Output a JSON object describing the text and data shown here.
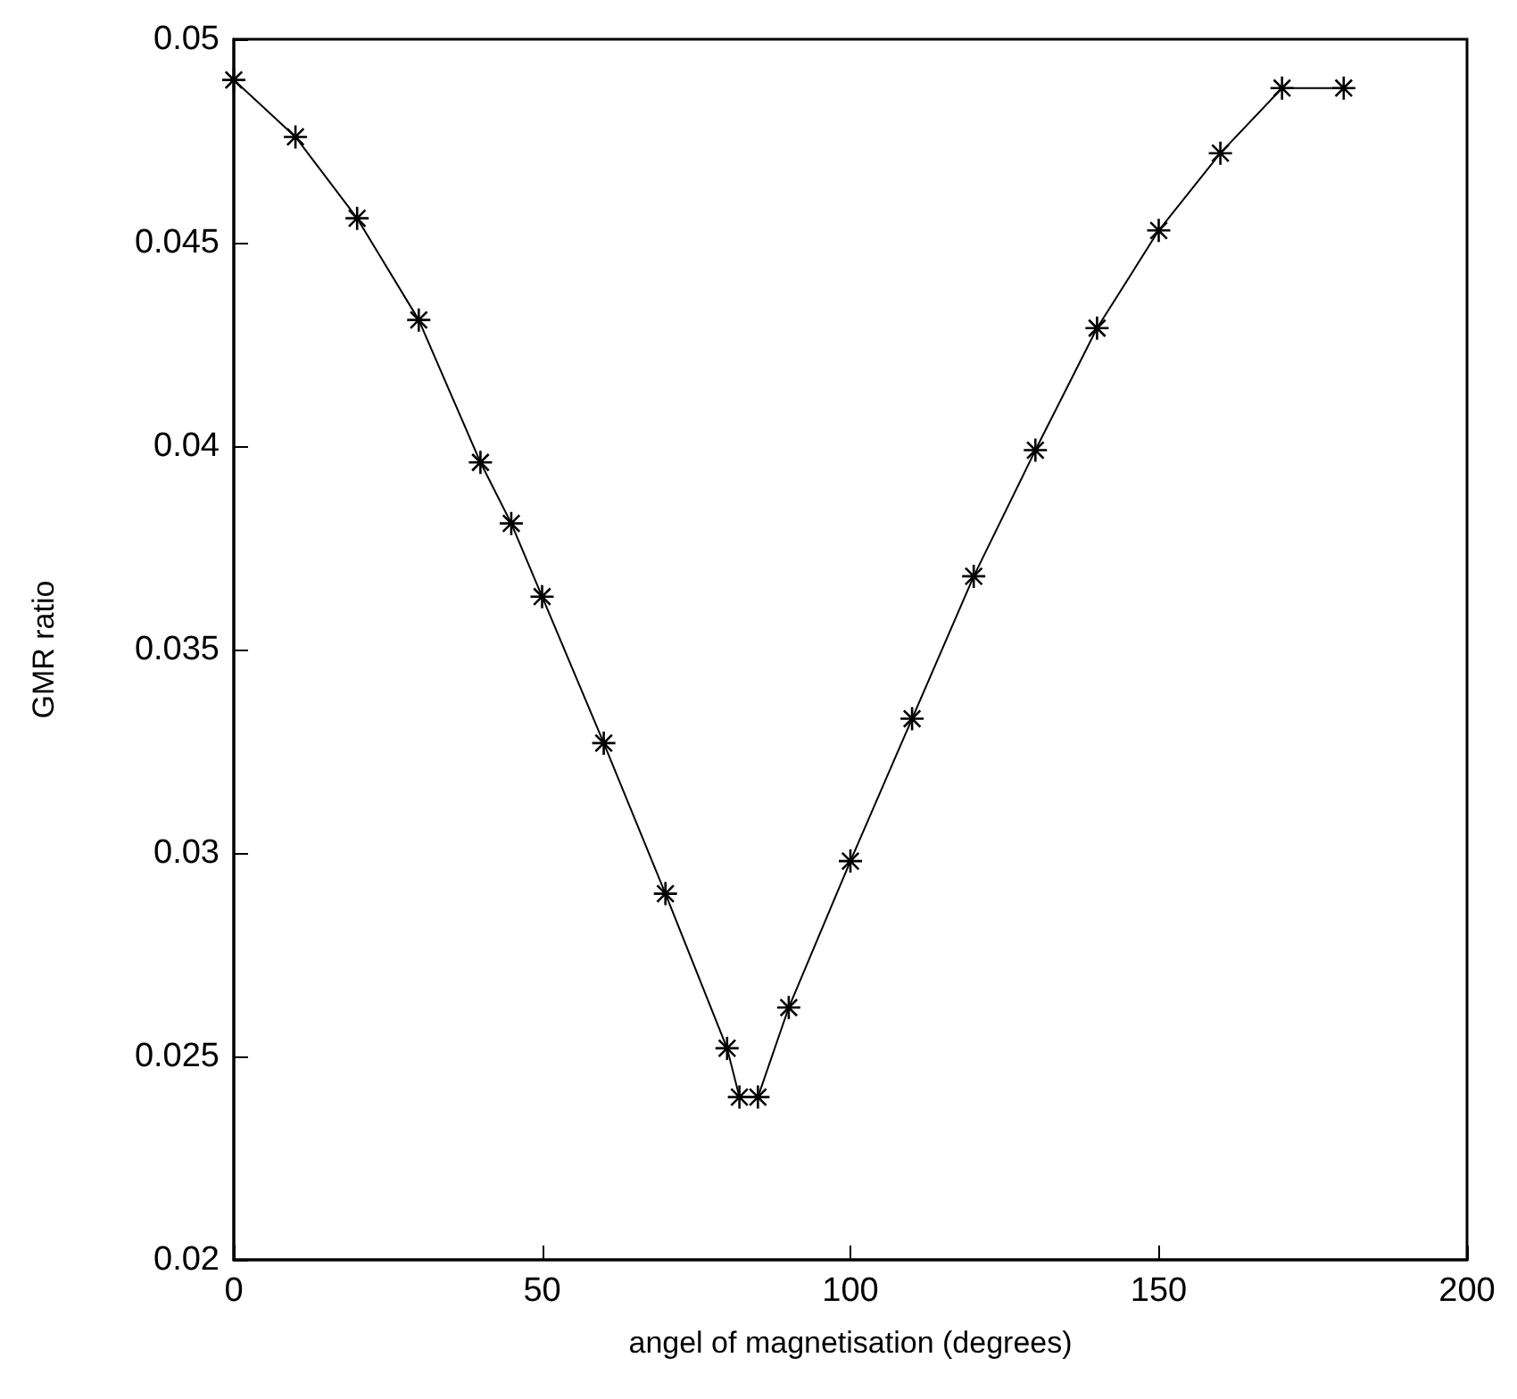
{
  "chart_data": {
    "type": "line",
    "xlabel": "angel of magnetisation (degrees)",
    "ylabel": "GMR ratio",
    "x": [
      0,
      10,
      20,
      30,
      40,
      45,
      50,
      60,
      70,
      80,
      82,
      85,
      90,
      100,
      110,
      120,
      130,
      140,
      150,
      160,
      170,
      180
    ],
    "series": [
      {
        "color": "#000000",
        "values": [
          0.049,
          0.0476,
          0.0456,
          0.0431,
          0.0396,
          0.0381,
          0.0363,
          0.0327,
          0.029,
          0.0252,
          0.024,
          0.024,
          0.0262,
          0.0298,
          0.0333,
          0.0368,
          0.0399,
          0.0429,
          0.0453,
          0.0472,
          0.0488,
          0.0488
        ]
      }
    ],
    "xlim": [
      0,
      200
    ],
    "xticks": [
      0,
      50,
      100,
      150,
      200
    ],
    "ylim": [
      0.02,
      0.05
    ],
    "yticks": [
      0.02,
      0.025,
      0.03,
      0.035,
      0.04,
      0.045,
      0.05
    ],
    "grid": false,
    "marker": "star",
    "line_style": "solid"
  }
}
